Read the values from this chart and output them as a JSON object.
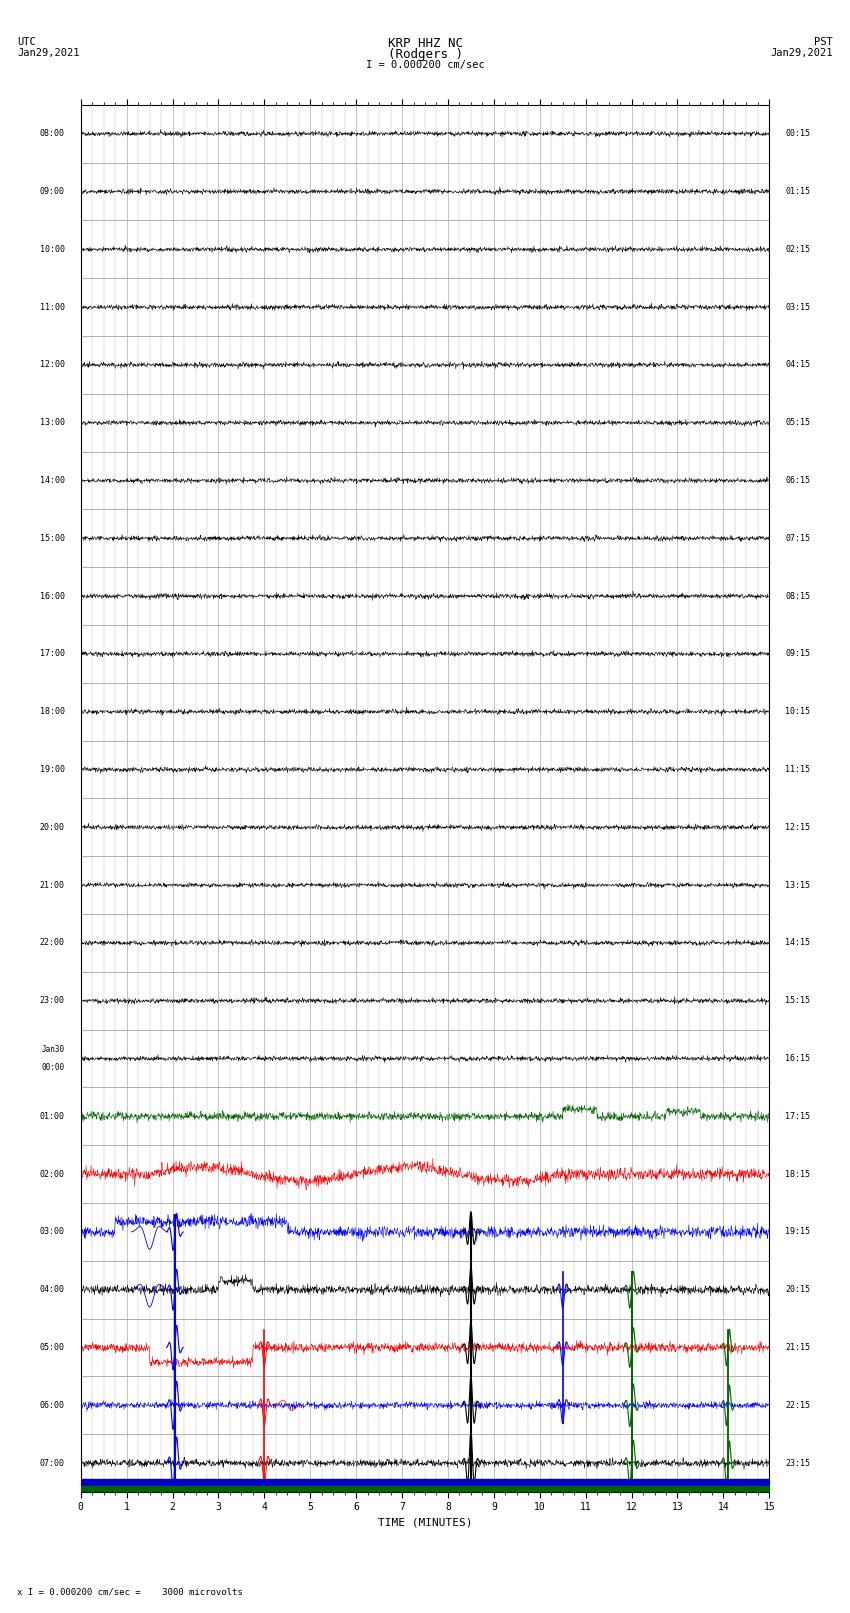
{
  "title_line1": "KRP HHZ NC",
  "title_line2": "(Rodgers )",
  "title_line3": "I = 0.000200 cm/sec",
  "left_header_line1": "UTC",
  "left_header_line2": "Jan29,2021",
  "right_header_line1": "PST",
  "right_header_line2": "Jan29,2021",
  "xlabel": "TIME (MINUTES)",
  "footer": "x I = 0.000200 cm/sec =    3000 microvolts",
  "fig_width": 8.5,
  "fig_height": 16.13,
  "dpi": 100,
  "num_traces": 24,
  "minutes_per_trace": 15,
  "background_color": "#ffffff",
  "grid_color": "#aaaaaa",
  "trace_color_black": "#000000",
  "trace_color_blue": "#0000ff",
  "trace_color_red": "#ff0000",
  "trace_color_green": "#006400",
  "bottom_bar_blue": "#0000cc",
  "bottom_bar_green": "#006400",
  "utc_labels": [
    "08:00",
    "09:00",
    "10:00",
    "11:00",
    "12:00",
    "13:00",
    "14:00",
    "15:00",
    "16:00",
    "17:00",
    "18:00",
    "19:00",
    "20:00",
    "21:00",
    "22:00",
    "23:00",
    "Jan30\n00:00",
    "01:00",
    "02:00",
    "03:00",
    "04:00",
    "05:00",
    "06:00",
    "07:00"
  ],
  "pst_labels": [
    "00:15",
    "01:15",
    "02:15",
    "03:15",
    "04:15",
    "05:15",
    "06:15",
    "07:15",
    "08:15",
    "09:15",
    "10:15",
    "11:15",
    "12:15",
    "13:15",
    "14:15",
    "15:15",
    "16:15",
    "17:15",
    "18:15",
    "19:15",
    "20:15",
    "21:15",
    "22:15",
    "23:15"
  ]
}
